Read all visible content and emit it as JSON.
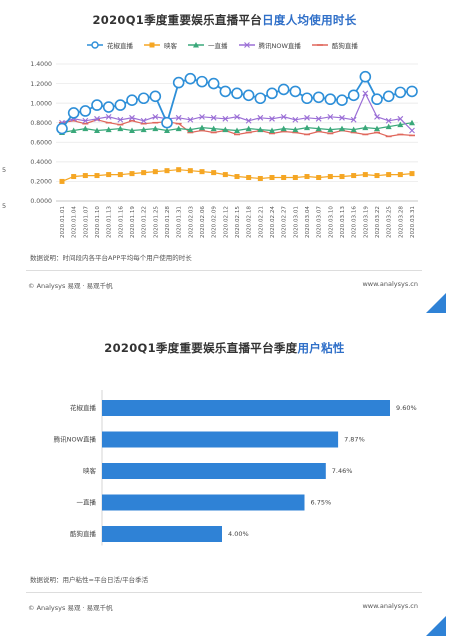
{
  "charts": {
    "dau_time": {
      "title_prefix": "2020Q1季度重要娱乐直播平台",
      "title_highlight": "日度人均使用时长",
      "note": "数据说明：时间段内各平台APP平均每个用户使用的时长",
      "footer_left": "© Analysys 易观 · 易观千帆",
      "footer_right": "www.analysys.cn",
      "edge_left_1": "5",
      "edge_left_2": "5"
    },
    "stickiness": {
      "title_prefix": "2020Q1季度重要娱乐直播平台季度",
      "title_highlight": "用户粘性",
      "note": "数据说明：用户粘性=平台日活/平台季活",
      "footer_left": "© Analysys 易观 · 易观千帆",
      "footer_right": "www.analysys.cn"
    }
  },
  "colors": {
    "huajiao": "#2e8fd8",
    "huya": "#f5a623",
    "yizhibo": "#3aa87a",
    "tengxun_now": "#9b6fd6",
    "miaopai": "#e0675c",
    "bar": "#2f82d6",
    "accent": "#2f6fc8"
  },
  "chart_data": [
    {
      "type": "line",
      "title": "2020Q1季度重要娱乐直播平台日度人均使用时长",
      "ylim": [
        0,
        1.4
      ],
      "yticks": [
        "0.0000",
        "0.2000",
        "0.4000",
        "0.6000",
        "0.8000",
        "1.0000",
        "1.2000",
        "1.4000"
      ],
      "x": [
        "2020.01.01",
        "2020.01.04",
        "2020.01.07",
        "2020.01.10",
        "2020.01.13",
        "2020.01.16",
        "2020.01.19",
        "2020.01.22",
        "2020.01.25",
        "2020.01.28",
        "2020.01.31",
        "2020.02.03",
        "2020.02.06",
        "2020.02.09",
        "2020.02.12",
        "2020.02.15",
        "2020.02.18",
        "2020.02.21",
        "2020.02.24",
        "2020.02.27",
        "2020.03.01",
        "2020.03.04",
        "2020.03.07",
        "2020.03.10",
        "2020.03.13",
        "2020.03.16",
        "2020.03.19",
        "2020.03.22",
        "2020.03.25",
        "2020.03.28",
        "2020.03.31"
      ],
      "grid": true,
      "legend_position": "top",
      "series": [
        {
          "name": "花椒直播",
          "color_key": "huajiao",
          "marker": "circle",
          "values": [
            0.74,
            0.9,
            0.92,
            0.98,
            0.96,
            0.98,
            1.03,
            1.05,
            1.07,
            0.8,
            1.21,
            1.25,
            1.22,
            1.2,
            1.12,
            1.1,
            1.08,
            1.05,
            1.1,
            1.14,
            1.12,
            1.05,
            1.06,
            1.04,
            1.03,
            1.08,
            1.27,
            1.04,
            1.07,
            1.11,
            1.12
          ]
        },
        {
          "name": "映客",
          "color_key": "huya",
          "marker": "square",
          "values": [
            0.2,
            0.25,
            0.26,
            0.26,
            0.27,
            0.27,
            0.28,
            0.29,
            0.3,
            0.31,
            0.32,
            0.31,
            0.3,
            0.29,
            0.27,
            0.25,
            0.24,
            0.23,
            0.24,
            0.24,
            0.24,
            0.25,
            0.24,
            0.25,
            0.25,
            0.26,
            0.27,
            0.26,
            0.27,
            0.27,
            0.28
          ]
        },
        {
          "name": "一直播",
          "color_key": "yizhibo",
          "marker": "triangle",
          "values": [
            0.7,
            0.72,
            0.74,
            0.72,
            0.73,
            0.74,
            0.72,
            0.73,
            0.74,
            0.72,
            0.74,
            0.73,
            0.75,
            0.74,
            0.73,
            0.72,
            0.74,
            0.73,
            0.72,
            0.74,
            0.73,
            0.75,
            0.74,
            0.73,
            0.74,
            0.73,
            0.75,
            0.74,
            0.76,
            0.78,
            0.8
          ]
        },
        {
          "name": "腾讯NOW直播",
          "color_key": "tengxun_now",
          "marker": "x",
          "values": [
            0.8,
            0.84,
            0.82,
            0.84,
            0.86,
            0.83,
            0.85,
            0.82,
            0.86,
            0.84,
            0.85,
            0.83,
            0.86,
            0.85,
            0.84,
            0.86,
            0.82,
            0.85,
            0.84,
            0.86,
            0.83,
            0.85,
            0.84,
            0.86,
            0.85,
            0.83,
            1.1,
            0.86,
            0.82,
            0.84,
            0.72
          ]
        },
        {
          "name": "酷狗直播",
          "color_key": "miaopai",
          "marker": "dash",
          "values": [
            0.8,
            0.82,
            0.79,
            0.83,
            0.8,
            0.78,
            0.82,
            0.79,
            0.8,
            0.81,
            0.79,
            0.7,
            0.72,
            0.7,
            0.72,
            0.68,
            0.7,
            0.72,
            0.69,
            0.71,
            0.7,
            0.68,
            0.71,
            0.69,
            0.72,
            0.7,
            0.68,
            0.7,
            0.66,
            0.68,
            0.67
          ]
        }
      ]
    },
    {
      "type": "bar",
      "orientation": "horizontal",
      "title": "2020Q1季度重要娱乐直播平台季度用户粘性",
      "categories": [
        "花椒直播",
        "腾讯NOW直播",
        "映客",
        "一直播",
        "酷狗直播"
      ],
      "values": [
        9.6,
        7.87,
        7.46,
        6.75,
        4.0
      ],
      "value_labels": [
        "9.60%",
        "7.87%",
        "7.46%",
        "6.75%",
        "4.00%"
      ],
      "unit": "%",
      "xlim": [
        0,
        10
      ]
    }
  ]
}
